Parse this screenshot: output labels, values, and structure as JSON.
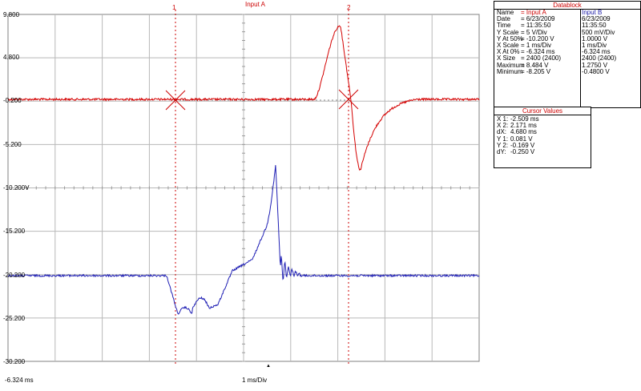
{
  "top_title": "Input A",
  "y_axis_labels": [
    "9.800",
    "4.800",
    "-0.200",
    "-5.200",
    "-10.200V",
    "-15.200",
    "-20.200",
    "-25.200",
    "-30.200"
  ],
  "cursor_labels": {
    "c1": "1",
    "c2": "2"
  },
  "bottom": {
    "left": "-6.324 ms",
    "center": "1 ms/Div",
    "marker": "▲"
  },
  "datablock": {
    "title": "Datablock",
    "headers": {
      "a": "Input A",
      "b": "Input B"
    },
    "rows": [
      {
        "label": "Name",
        "a": "= Input A",
        "b": "Input B"
      },
      {
        "label": "Date",
        "a": "= 6/23/2009",
        "b": "6/23/2009"
      },
      {
        "label": "Time",
        "a": "= 11:35:50",
        "b": "11:35:50"
      },
      {
        "label": "Y Scale",
        "a": "= 5     V/Div",
        "b": "500     mV/Div"
      },
      {
        "label": "Y At 50%",
        "a": "= -10.200 V",
        "b": "1.0000 V"
      },
      {
        "label": "X Scale",
        "a": "= 1     ms/Div",
        "b": "1     ms/Div"
      },
      {
        "label": "X At 0%",
        "a": "= -6.324  ms",
        "b": "-6.324   ms"
      },
      {
        "label": "X Size",
        "a": "= 2400 (2400)",
        "b": "2400 (2400)"
      },
      {
        "label": "Maximum",
        "a": "= 8.484 V",
        "b": "1.2750 V"
      },
      {
        "label": "Minimum",
        "a": "= -8.205 V",
        "b": "-0.4800 V"
      }
    ]
  },
  "cursor_values": {
    "title": "Cursor Values",
    "rows": [
      {
        "label": "X 1:",
        "value": "-2.509 ms"
      },
      {
        "label": "X 2:",
        "value": "2.171 ms"
      },
      {
        "label": "dX:",
        "value": "4.680 ms"
      },
      {
        "label": "Y 1:",
        "value": "0.081 V"
      },
      {
        "label": "Y 2:",
        "value": "-0.169 V"
      },
      {
        "label": "dY:",
        "value": "-0.250 V"
      }
    ]
  },
  "colors": {
    "channel_a": "#d40000",
    "channel_b": "#1e1eb4",
    "grid": "#b8b8b8",
    "cursor": "#cc0000"
  }
}
